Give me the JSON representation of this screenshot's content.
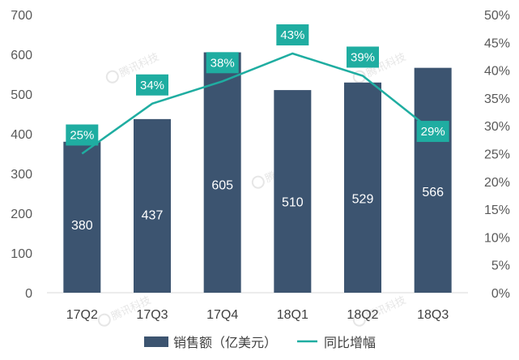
{
  "chart_data": {
    "type": "bar",
    "categories": [
      "17Q2",
      "17Q3",
      "17Q4",
      "18Q1",
      "18Q2",
      "18Q3"
    ],
    "series": [
      {
        "name": "销售额（亿美元）",
        "kind": "bar",
        "axis": "left",
        "values": [
          380,
          437,
          605,
          510,
          529,
          566
        ],
        "labels": [
          "380",
          "437",
          "605",
          "510",
          "529",
          "566"
        ],
        "color": "#3c5470"
      },
      {
        "name": "同比增幅",
        "kind": "line",
        "axis": "right",
        "values": [
          25,
          34,
          38,
          43,
          39,
          29
        ],
        "labels": [
          "25%",
          "34%",
          "38%",
          "43%",
          "39%",
          "29%"
        ],
        "color": "#1fada1"
      }
    ],
    "ylim_left": [
      0,
      700
    ],
    "yticks_left": [
      "0",
      "100",
      "200",
      "300",
      "400",
      "500",
      "600",
      "700"
    ],
    "ylim_right": [
      0,
      50
    ],
    "yticks_right": [
      "0%",
      "5%",
      "10%",
      "15%",
      "20%",
      "25%",
      "30%",
      "35%",
      "40%",
      "45%",
      "50%"
    ],
    "legend_position": "bottom",
    "watermark": "腾讯科技"
  }
}
